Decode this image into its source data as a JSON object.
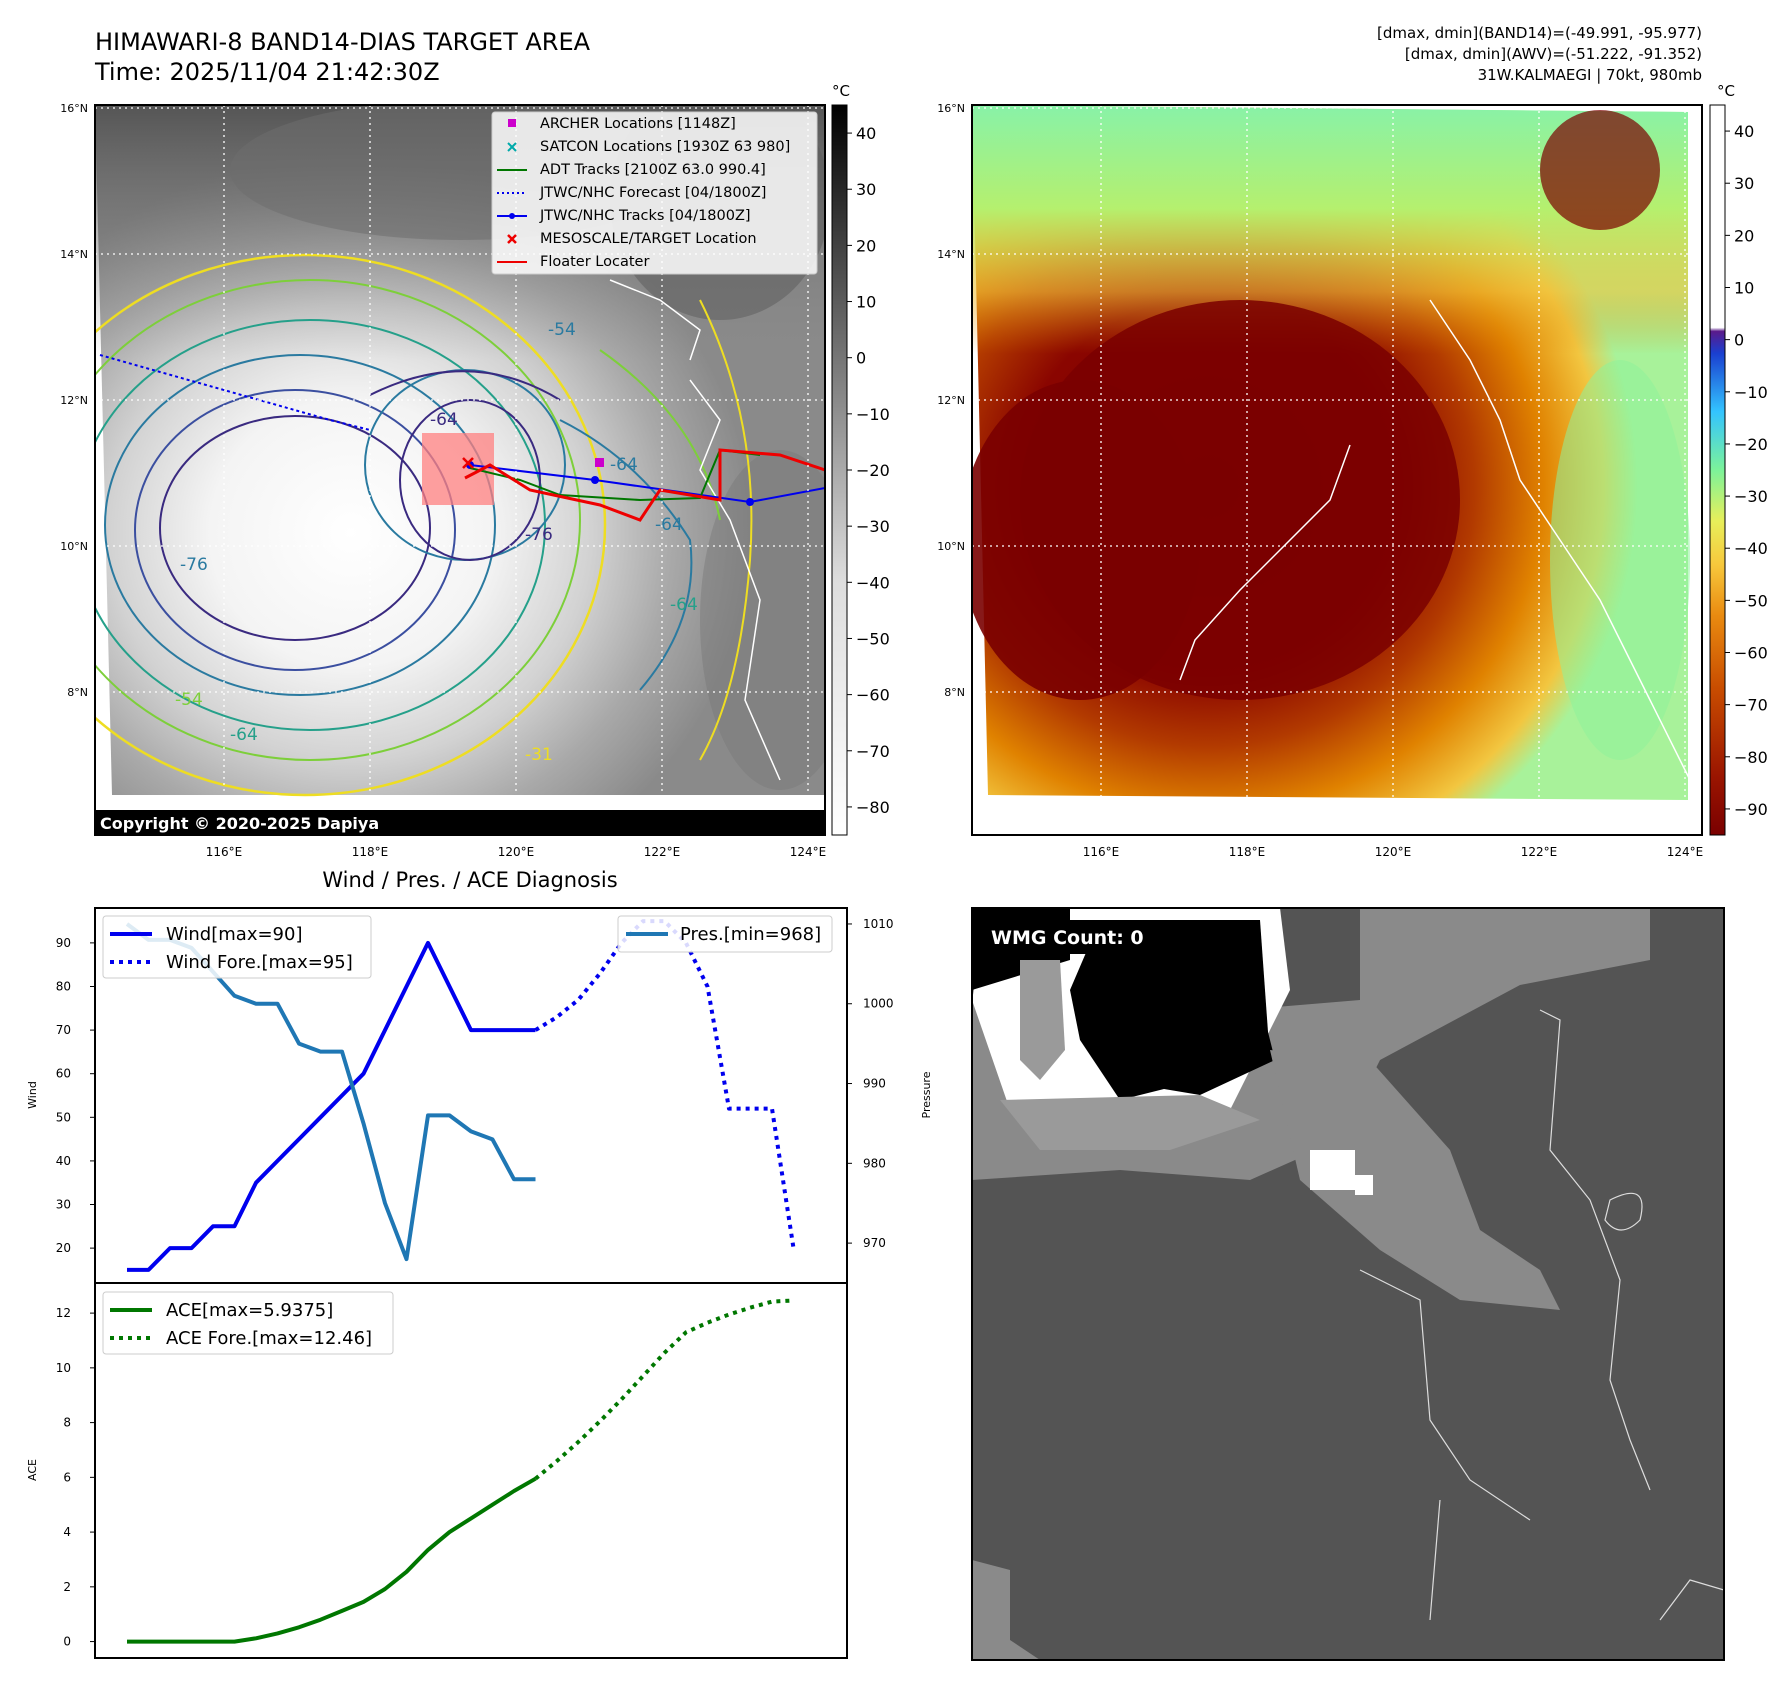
{
  "header": {
    "title_line1": "HIMAWARI-8 BAND14-DIAS TARGET AREA",
    "title_line2": "Time: 2025/11/04 21:42:30Z",
    "info_line1": "[dmax, dmin](BAND14)=(-49.991, -95.977)",
    "info_line2": "[dmax, dmin](AWV)=(-51.222, -91.352)",
    "info_line3": "31W.KALMAEGI | 70kt, 980mb"
  },
  "map_axes": {
    "lat_labels": [
      "16°N",
      "14°N",
      "12°N",
      "10°N",
      "8°N"
    ],
    "lon_labels": [
      "116°E",
      "118°E",
      "120°E",
      "122°E",
      "124°E"
    ]
  },
  "contour_labels": [
    "-54",
    "-64",
    "-64",
    "-64",
    "-76",
    "-76",
    "-64",
    "-54",
    "-64",
    "-31"
  ],
  "ir_colorbar": {
    "unit": "°C",
    "ticks": [
      "40",
      "30",
      "20",
      "10",
      "0",
      "−10",
      "−20",
      "−30",
      "−40",
      "−50",
      "−60",
      "−70",
      "−80"
    ]
  },
  "awv_colorbar": {
    "unit": "°C",
    "ticks": [
      "40",
      "30",
      "20",
      "10",
      "0",
      "−10",
      "−20",
      "−30",
      "−40",
      "−50",
      "−60",
      "−70",
      "−80",
      "−90"
    ]
  },
  "legend": {
    "items": [
      {
        "label": "ARCHER Locations [1148Z]",
        "color": "#cc00cc",
        "marker": "square"
      },
      {
        "label": "SATCON Locations [1930Z 63 980]",
        "color": "#00aaaa",
        "marker": "x"
      },
      {
        "label": "ADT Tracks [2100Z 63.0 990.4]",
        "color": "#007700",
        "marker": "line"
      },
      {
        "label": "JTWC/NHC Forecast [04/1800Z]",
        "color": "#0000ee",
        "marker": "dotted"
      },
      {
        "label": "JTWC/NHC Tracks [04/1800Z]",
        "color": "#0000ee",
        "marker": "dot-line"
      },
      {
        "label": "MESOSCALE/TARGET Location",
        "color": "#ee0000",
        "marker": "x"
      },
      {
        "label": "Floater Locater",
        "color": "#ee0000",
        "marker": "line"
      }
    ]
  },
  "copyright": "Copyright © 2020-2025 Dapiya",
  "wmg": {
    "label": "WMG Count: 0"
  },
  "chart_data": [
    {
      "type": "line",
      "title": "Wind / Pres. / ACE Diagnosis",
      "ylabel": "Wind",
      "ylabel_right": "Pressure",
      "ylim": [
        12,
        98
      ],
      "ylim_right": [
        965,
        1012
      ],
      "yticks": [
        20,
        30,
        40,
        50,
        60,
        70,
        80,
        90
      ],
      "yticks_right": [
        970,
        980,
        990,
        1000,
        1010
      ],
      "x_range": [
        0,
        32
      ],
      "series": [
        {
          "name": "Wind",
          "legend": "Wind[max=90]",
          "color": "#0000ee",
          "style": "solid",
          "axis": "left",
          "x": [
            0,
            1,
            2,
            3,
            4,
            5,
            6,
            7,
            8,
            9,
            10,
            11,
            12,
            13,
            14,
            15,
            16,
            17,
            18,
            19
          ],
          "values": [
            15,
            15,
            20,
            20,
            25,
            25,
            35,
            40,
            45,
            50,
            55,
            60,
            70,
            80,
            90,
            80,
            70,
            70,
            70,
            70
          ]
        },
        {
          "name": "Wind Fore.",
          "legend": "Wind Fore.[max=95]",
          "color": "#0000ee",
          "style": "dotted",
          "axis": "left",
          "x": [
            19,
            20,
            21,
            22,
            23,
            24,
            25,
            26,
            27,
            28,
            29,
            30,
            31
          ],
          "values": [
            70,
            73,
            77,
            83,
            90,
            95,
            95,
            90,
            80,
            52,
            52,
            52,
            20
          ]
        },
        {
          "name": "Pres.",
          "legend": "Pres.[min=968]",
          "color": "#1f77b4",
          "style": "solid",
          "axis": "right",
          "x": [
            0,
            1,
            2,
            3,
            4,
            5,
            6,
            7,
            8,
            9,
            10,
            11,
            12,
            13,
            14,
            15,
            16,
            17,
            18,
            19
          ],
          "values": [
            1010,
            1008,
            1008,
            1007,
            1004,
            1001,
            1000,
            1000,
            995,
            994,
            994,
            985,
            975,
            968,
            986,
            986,
            984,
            983,
            978,
            978
          ]
        }
      ]
    },
    {
      "type": "line",
      "ylabel": "ACE",
      "ylim": [
        -0.6,
        13.1
      ],
      "yticks": [
        0,
        2,
        4,
        6,
        8,
        10,
        12
      ],
      "x_range": [
        0,
        32
      ],
      "series": [
        {
          "name": "ACE",
          "legend": "ACE[max=5.9375]",
          "color": "#007700",
          "style": "solid",
          "x": [
            0,
            1,
            2,
            3,
            4,
            5,
            6,
            7,
            8,
            9,
            10,
            11,
            12,
            13,
            14,
            15,
            16,
            17,
            18,
            19
          ],
          "values": [
            0,
            0,
            0,
            0,
            0,
            0,
            0.12,
            0.3,
            0.52,
            0.8,
            1.12,
            1.45,
            1.92,
            2.55,
            3.35,
            4.0,
            4.5,
            5.0,
            5.5,
            5.95
          ]
        },
        {
          "name": "ACE Fore.",
          "legend": "ACE Fore.[max=12.46]",
          "color": "#007700",
          "style": "dotted",
          "x": [
            19,
            20,
            21,
            22,
            23,
            24,
            25,
            26,
            27,
            28,
            29,
            30,
            31
          ],
          "values": [
            5.95,
            6.6,
            7.3,
            8.05,
            8.85,
            9.7,
            10.55,
            11.3,
            11.65,
            11.95,
            12.2,
            12.42,
            12.46
          ]
        }
      ]
    }
  ]
}
